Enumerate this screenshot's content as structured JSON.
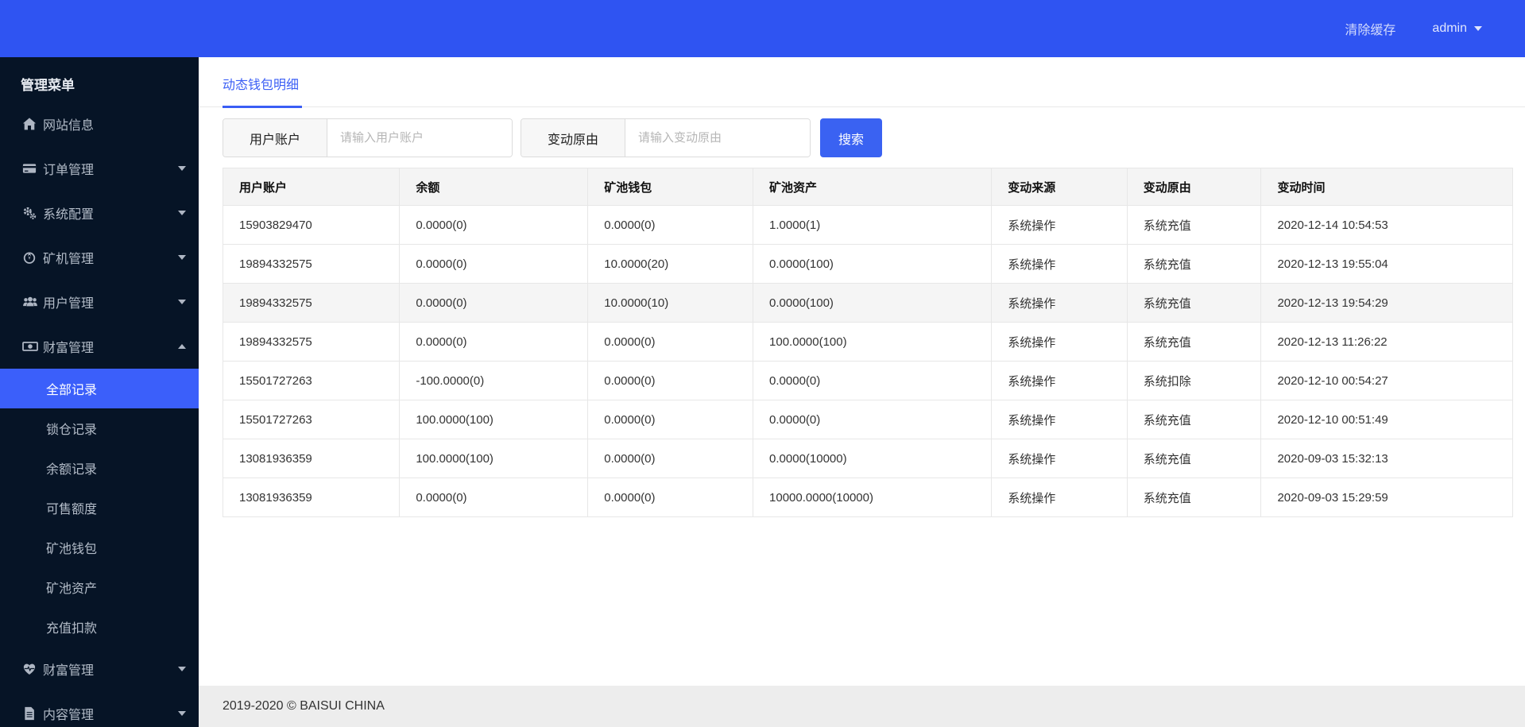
{
  "topbar": {
    "clear_cache": "清除缓存",
    "username": "admin"
  },
  "sidebar": {
    "title": "管理菜单",
    "items": [
      {
        "label": "网站信息",
        "icon": "home-icon",
        "arrow": null
      },
      {
        "label": "订单管理",
        "icon": "credit-card-icon",
        "arrow": "down"
      },
      {
        "label": "系统配置",
        "icon": "gears-icon",
        "arrow": "down"
      },
      {
        "label": "矿机管理",
        "icon": "miner-icon",
        "arrow": "down"
      },
      {
        "label": "用户管理",
        "icon": "users-icon",
        "arrow": "down"
      },
      {
        "label": "财富管理",
        "icon": "money-icon",
        "arrow": "up",
        "expanded": true,
        "children": [
          {
            "label": "全部记录",
            "active": true
          },
          {
            "label": "锁仓记录",
            "active": false
          },
          {
            "label": "余额记录",
            "active": false
          },
          {
            "label": "可售额度",
            "active": false
          },
          {
            "label": "矿池钱包",
            "active": false
          },
          {
            "label": "矿池资产",
            "active": false
          },
          {
            "label": "充值扣款",
            "active": false
          }
        ]
      },
      {
        "label": "财富管理",
        "icon": "heartbeat-icon",
        "arrow": "down"
      },
      {
        "label": "内容管理",
        "icon": "file-icon",
        "arrow": "down"
      }
    ]
  },
  "main": {
    "tab": "动态钱包明细",
    "filters": [
      {
        "label": "用户账户",
        "placeholder": "请输入用户账户"
      },
      {
        "label": "变动原由",
        "placeholder": "请输入变动原由"
      }
    ],
    "search_button": "搜索",
    "table": {
      "columns": [
        "用户账户",
        "余额",
        "矿池钱包",
        "矿池资产",
        "变动来源",
        "变动原由",
        "变动时间"
      ],
      "column_widths_pct": [
        13.7,
        14.6,
        12.8,
        18.5,
        10.5,
        10.4,
        19.5
      ],
      "highlight_row_index": 2,
      "rows": [
        [
          "15903829470",
          "0.0000(0)",
          "0.0000(0)",
          "1.0000(1)",
          "系统操作",
          "系统充值",
          "2020-12-14 10:54:53"
        ],
        [
          "19894332575",
          "0.0000(0)",
          "10.0000(20)",
          "0.0000(100)",
          "系统操作",
          "系统充值",
          "2020-12-13 19:55:04"
        ],
        [
          "19894332575",
          "0.0000(0)",
          "10.0000(10)",
          "0.0000(100)",
          "系统操作",
          "系统充值",
          "2020-12-13 19:54:29"
        ],
        [
          "19894332575",
          "0.0000(0)",
          "0.0000(0)",
          "100.0000(100)",
          "系统操作",
          "系统充值",
          "2020-12-13 11:26:22"
        ],
        [
          "15501727263",
          "-100.0000(0)",
          "0.0000(0)",
          "0.0000(0)",
          "系统操作",
          "系统扣除",
          "2020-12-10 00:54:27"
        ],
        [
          "15501727263",
          "100.0000(100)",
          "0.0000(0)",
          "0.0000(0)",
          "系统操作",
          "系统充值",
          "2020-12-10 00:51:49"
        ],
        [
          "13081936359",
          "100.0000(100)",
          "0.0000(0)",
          "0.0000(10000)",
          "系统操作",
          "系统充值",
          "2020-09-03 15:32:13"
        ],
        [
          "13081936359",
          "0.0000(0)",
          "0.0000(0)",
          "10000.0000(10000)",
          "系统操作",
          "系统充值",
          "2020-09-03 15:29:59"
        ]
      ]
    }
  },
  "footer": {
    "copyright": "2019-2020 © BAISUI CHINA"
  },
  "colors": {
    "topbar_blue": "#2f54f2",
    "active_menu_blue": "#3b5ffa",
    "button_blue": "#3a62f2",
    "tab_blue": "#3a5ef5",
    "sidebar_bg": "#061426",
    "sidebar_text": "#b3bcc8",
    "table_border": "#e7e7e7",
    "header_bg": "#f4f4f4",
    "footer_bg": "#ededed"
  }
}
